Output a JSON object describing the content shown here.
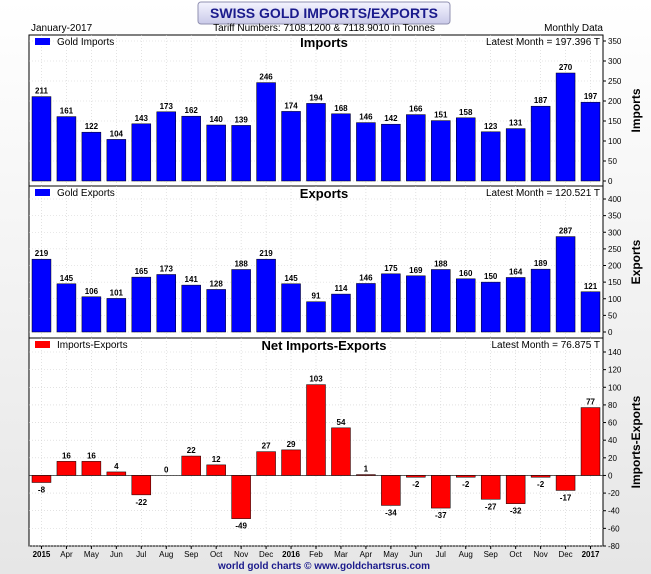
{
  "header": {
    "title": "SWISS GOLD IMPORTS/EXPORTS",
    "date": "January-2017",
    "subtitle": "Tariff Numbers: 7108.1200 & 7118.9010 in Tonnes",
    "frequency": "Monthly Data"
  },
  "footer": {
    "credit": "world gold charts © www.goldchartsrus.com"
  },
  "chart_data": [
    {
      "type": "bar",
      "title": "Imports",
      "legend": "Gold Imports",
      "latest": "Latest Month = 197.396 T",
      "ylabel": "Imports",
      "ylim": [
        0,
        350
      ],
      "yticks": [
        0,
        50,
        100,
        150,
        200,
        250,
        300,
        350
      ],
      "color": "#0000ff",
      "categories": [
        "2015",
        "Apr",
        "May",
        "Jun",
        "Jul",
        "Aug",
        "Sep",
        "Oct",
        "Nov",
        "Dec",
        "2016",
        "Feb",
        "Mar",
        "Apr",
        "May",
        "Jun",
        "Jul",
        "Aug",
        "Sep",
        "Oct",
        "Nov",
        "Dec",
        "2017"
      ],
      "values": [
        211,
        161,
        122,
        104,
        143,
        173,
        162,
        140,
        139,
        246,
        174,
        194,
        168,
        146,
        142,
        166,
        151,
        158,
        123,
        131,
        187,
        270,
        197
      ],
      "grid": true,
      "legend_position": "top-left"
    },
    {
      "type": "bar",
      "title": "Exports",
      "legend": "Gold Exports",
      "latest": "Latest Month = 120.521 T",
      "ylabel": "Exports",
      "ylim": [
        0,
        400
      ],
      "yticks": [
        0,
        50,
        100,
        150,
        200,
        250,
        300,
        350,
        400
      ],
      "color": "#0000ff",
      "categories": [
        "2015",
        "Apr",
        "May",
        "Jun",
        "Jul",
        "Aug",
        "Sep",
        "Oct",
        "Nov",
        "Dec",
        "2016",
        "Feb",
        "Mar",
        "Apr",
        "May",
        "Jun",
        "Jul",
        "Aug",
        "Sep",
        "Oct",
        "Nov",
        "Dec",
        "2017"
      ],
      "values": [
        219,
        145,
        106,
        101,
        165,
        173,
        141,
        128,
        188,
        219,
        145,
        91,
        114,
        146,
        175,
        169,
        188,
        160,
        150,
        164,
        189,
        287,
        121
      ],
      "grid": true,
      "legend_position": "top-left"
    },
    {
      "type": "bar",
      "title": "Net Imports-Exports",
      "legend": "Imports-Exports",
      "latest": "Latest Month = 76.875 T",
      "ylabel": "Imports-Exports",
      "ylim": [
        -80,
        140
      ],
      "yticks": [
        -80,
        -60,
        -40,
        -20,
        0,
        20,
        40,
        60,
        80,
        100,
        120,
        140
      ],
      "color": "#ff0000",
      "categories": [
        "2015",
        "Apr",
        "May",
        "Jun",
        "Jul",
        "Aug",
        "Sep",
        "Oct",
        "Nov",
        "Dec",
        "2016",
        "Feb",
        "Mar",
        "Apr",
        "May",
        "Jun",
        "Jul",
        "Aug",
        "Sep",
        "Oct",
        "Nov",
        "Dec",
        "2017"
      ],
      "values": [
        -8,
        16,
        16,
        4,
        -22,
        0,
        22,
        12,
        -49,
        27,
        29,
        103,
        54,
        1,
        -34,
        -2,
        -37,
        -2,
        -27,
        -32,
        -2,
        -17,
        77
      ],
      "grid": true,
      "legend_position": "top-left"
    }
  ],
  "xaxis": {
    "labels": [
      "2015",
      "Apr",
      "May",
      "Jun",
      "Jul",
      "Aug",
      "Sep",
      "Oct",
      "Nov",
      "Dec",
      "2016",
      "Feb",
      "Mar",
      "Apr",
      "May",
      "Jun",
      "Jul",
      "Aug",
      "Sep",
      "Oct",
      "Nov",
      "Dec",
      "2017"
    ],
    "bold": [
      "2015",
      "2016",
      "2017"
    ]
  }
}
